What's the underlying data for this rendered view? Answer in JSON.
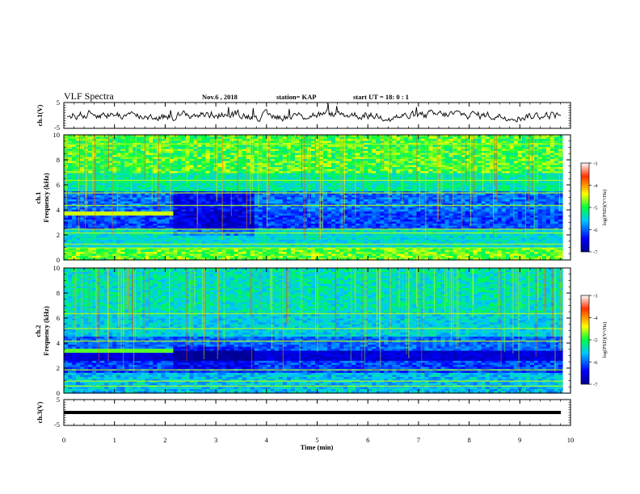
{
  "header": {
    "title": "VLF Spectra",
    "date": "Nov.6  , 2018",
    "station": "station= KAP",
    "start": "start  UT =   18: 0  : 1"
  },
  "chart_data": [
    {
      "type": "line",
      "ylabel": "ch.1(V)",
      "ylim": [
        -5,
        5
      ],
      "yticks": [
        "5",
        "-5"
      ],
      "xlim": [
        0,
        10
      ]
    },
    {
      "type": "heatmap",
      "ylabel_top": "ch.1",
      "ylabel": "Frequency (kHz)",
      "ylim": [
        0,
        10
      ],
      "yticks": [
        "0",
        "2",
        "4",
        "6",
        "8",
        "10"
      ],
      "xlim": [
        0,
        10
      ],
      "colorbar": {
        "label": "log(PSD)(V²/Hz)",
        "range": [
          -7,
          -3
        ],
        "ticks": [
          "-3",
          "-4",
          "-5",
          "-6",
          "-7"
        ]
      }
    },
    {
      "type": "heatmap",
      "ylabel_top": "ch.2",
      "ylabel": "Frequency (kHz)",
      "ylim": [
        0,
        10
      ],
      "yticks": [
        "0",
        "2",
        "4",
        "6",
        "8",
        "10"
      ],
      "xlim": [
        0,
        10
      ],
      "colorbar": {
        "label": "log(PSD)(V²/Hz)",
        "range": [
          -7,
          -3
        ],
        "ticks": [
          "-3",
          "-4",
          "-5",
          "-6",
          "-7"
        ]
      }
    },
    {
      "type": "line",
      "ylabel": "ch.3(V)",
      "ylim": [
        -5,
        5
      ],
      "yticks": [
        "5",
        "-5"
      ],
      "xlim": [
        0,
        10
      ],
      "series": [
        {
          "values": [
            0
          ]
        }
      ]
    }
  ],
  "x_axis": {
    "label": "Time (min)",
    "ticks": [
      "0",
      "1",
      "2",
      "3",
      "4",
      "5",
      "6",
      "7",
      "8",
      "9",
      "10"
    ],
    "range": [
      0,
      10
    ]
  }
}
